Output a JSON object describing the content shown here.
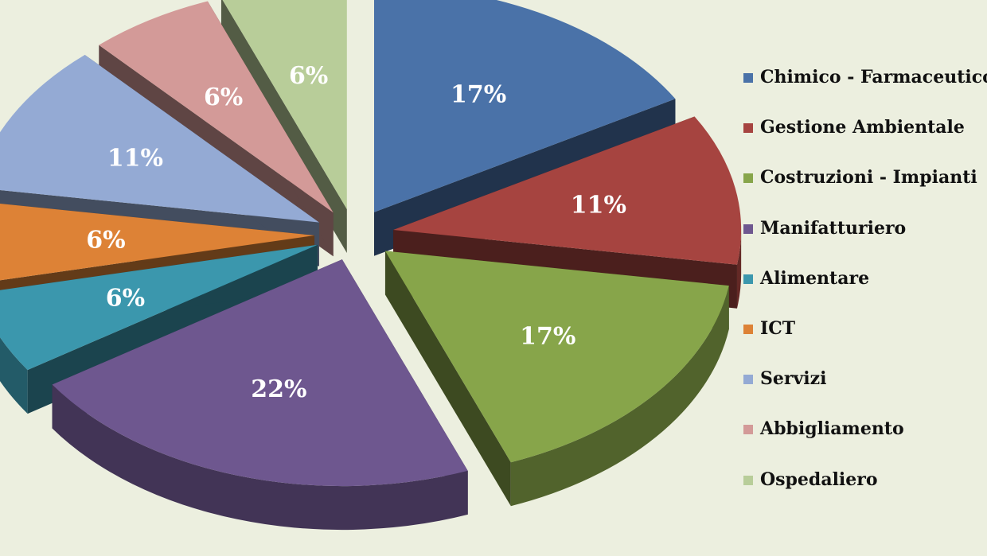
{
  "chart_data": {
    "type": "pie",
    "style": "3d-exploded",
    "legend_position": "right",
    "slices": [
      {
        "name": "Chimico - Farmaceutico",
        "label": "17%",
        "value": 17,
        "color": "#4a72a8"
      },
      {
        "name": "Gestione Ambientale",
        "label": "11%",
        "value": 11,
        "color": "#a64440"
      },
      {
        "name": "Costruzioni - Impianti",
        "label": "17%",
        "value": 17,
        "color": "#87a54a"
      },
      {
        "name": "Manifatturiero",
        "label": "22%",
        "value": 22,
        "color": "#6e578f"
      },
      {
        "name": "Alimentare",
        "label": "6%",
        "value": 6,
        "color": "#3b97ad"
      },
      {
        "name": "ICT",
        "label": "6%",
        "value": 6,
        "color": "#dd8236"
      },
      {
        "name": "Servizi",
        "label": "11%",
        "value": 11,
        "color": "#94aad4"
      },
      {
        "name": "Abbigliamento",
        "label": "6%",
        "value": 6,
        "color": "#d39a98"
      },
      {
        "name": "Ospedaliero",
        "label": "6%",
        "value": 6,
        "color": "#b8cd99"
      }
    ]
  }
}
